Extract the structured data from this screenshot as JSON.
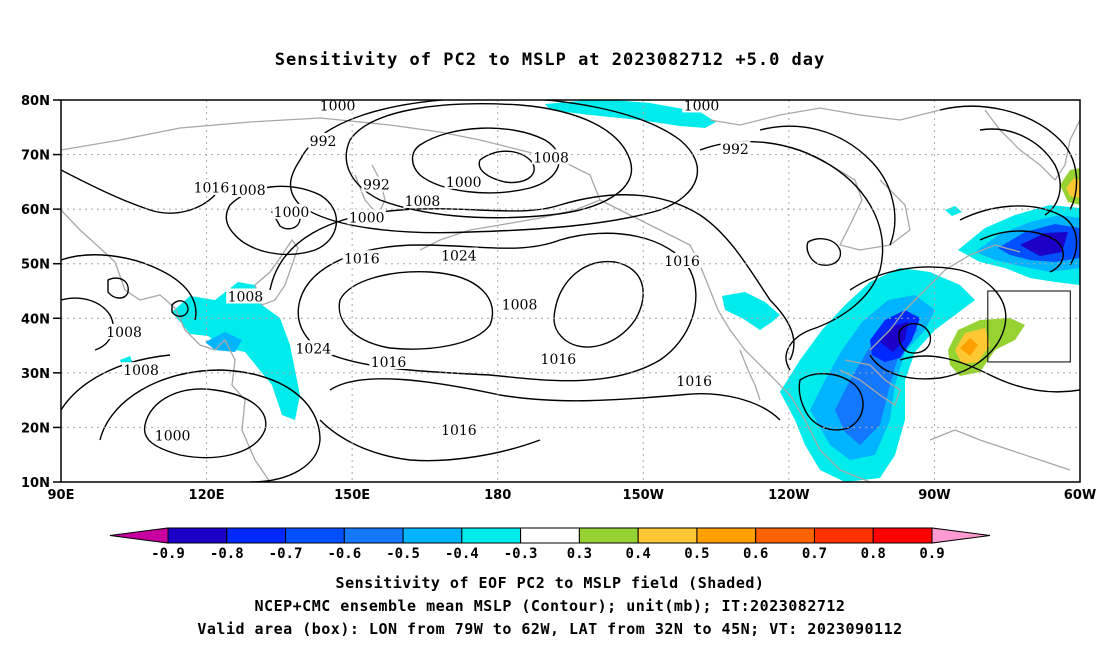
{
  "title": "Sensitivity of PC2 to MSLP at 2023082712 +5.0 day",
  "lat_labels": [
    "80N",
    "70N",
    "60N",
    "50N",
    "40N",
    "30N",
    "20N",
    "10N"
  ],
  "lon_labels": [
    "90E",
    "120E",
    "150E",
    "180",
    "150W",
    "120W",
    "90W",
    "60W"
  ],
  "contour_labels": [
    {
      "text": "1000",
      "lon": 147,
      "lat": 79
    },
    {
      "text": "992",
      "lon": 144,
      "lat": 72.5
    },
    {
      "text": "1016",
      "lon": 121,
      "lat": 64
    },
    {
      "text": "1008",
      "lon": 128.5,
      "lat": 63.5
    },
    {
      "text": "1000",
      "lon": 137.5,
      "lat": 59.5
    },
    {
      "text": "992",
      "lon": 155,
      "lat": 64.5
    },
    {
      "text": "1000",
      "lon": 153,
      "lat": 58.5
    },
    {
      "text": "1008",
      "lon": 164.5,
      "lat": 61.5
    },
    {
      "text": "1000",
      "lon": 173,
      "lat": 65
    },
    {
      "text": "1008",
      "lon": 191,
      "lat": 69.5
    },
    {
      "text": "1000",
      "lon": 222,
      "lat": 79
    },
    {
      "text": "992",
      "lon": 229,
      "lat": 71
    },
    {
      "text": "1016",
      "lon": 152,
      "lat": 51
    },
    {
      "text": "1024",
      "lon": 172,
      "lat": 51.5
    },
    {
      "text": "1008",
      "lon": 128,
      "lat": 44
    },
    {
      "text": "1008",
      "lon": 103,
      "lat": 37.5
    },
    {
      "text": "1008",
      "lon": 106.5,
      "lat": 30.5
    },
    {
      "text": "1024",
      "lon": 142,
      "lat": 34.5
    },
    {
      "text": "1016",
      "lon": 157.5,
      "lat": 32
    },
    {
      "text": "1000",
      "lon": 113,
      "lat": 18.5
    },
    {
      "text": "1016",
      "lon": 172,
      "lat": 19.5
    },
    {
      "text": "1008",
      "lon": 184.5,
      "lat": 42.5
    },
    {
      "text": "1016",
      "lon": 218,
      "lat": 50.5
    },
    {
      "text": "1016",
      "lon": 192.5,
      "lat": 32.5
    },
    {
      "text": "1016",
      "lon": 220.5,
      "lat": 28.5
    }
  ],
  "valid_box": {
    "lon_min": -79,
    "lon_max": -62,
    "lat_min": 32,
    "lat_max": 45
  },
  "colorbar": {
    "labels": [
      "-0.9",
      "-0.8",
      "-0.7",
      "-0.6",
      "-0.5",
      "-0.4",
      "-0.3",
      "0.3",
      "0.4",
      "0.5",
      "0.6",
      "0.7",
      "0.8",
      "0.9"
    ],
    "colors": [
      "#1c00c8",
      "#0028ff",
      "#0050ff",
      "#1478ff",
      "#00b4ff",
      "#00ebeb",
      "#ffffff",
      "#96d232",
      "#ffc832",
      "#ffa000",
      "#ff6400",
      "#ff3200",
      "#ff0000"
    ],
    "low_end_color": "#c800a0",
    "high_end_color": "#ff9bd2"
  },
  "captions": [
    "Sensitivity of EOF PC2 to MSLP field (Shaded)",
    "NCEP+CMC ensemble mean MSLP (Contour); unit(mb); IT:2023082712",
    "Valid area (box): LON from 79W to 62W, LAT from 32N to 45N; VT: 2023090112"
  ]
}
